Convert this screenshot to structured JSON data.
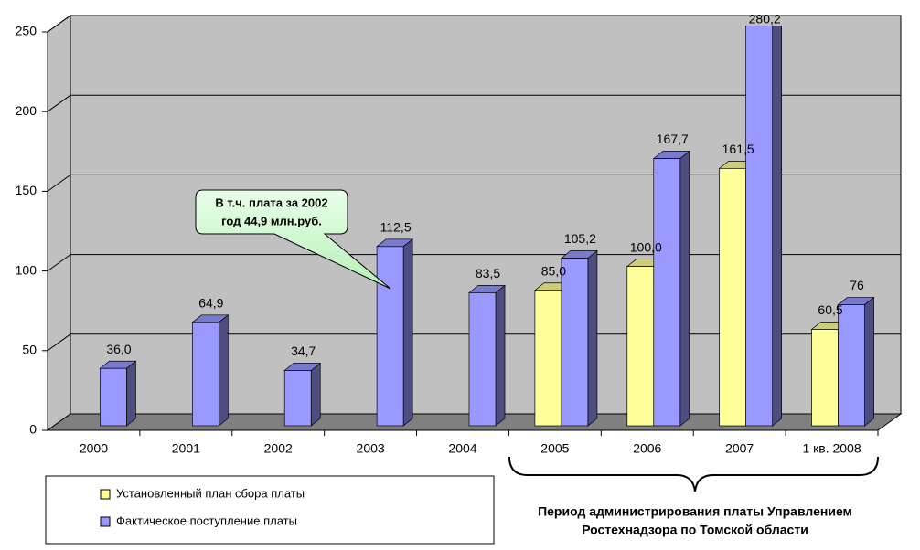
{
  "chart_data": {
    "type": "bar",
    "categories": [
      "2000",
      "2001",
      "2002",
      "2003",
      "2004",
      "2005",
      "2006",
      "2007",
      "1 кв. 2008"
    ],
    "series": [
      {
        "name": "Установленный план сбора платы",
        "color": "#ffff99",
        "values": [
          null,
          null,
          null,
          null,
          null,
          85.0,
          100.0,
          161.5,
          60.5
        ],
        "value_labels": [
          null,
          null,
          null,
          null,
          null,
          "85,0",
          "100,0",
          "161,5",
          "60,5"
        ]
      },
      {
        "name": "Фактическое поступление платы",
        "color": "#9999ff",
        "values": [
          36.0,
          64.9,
          34.7,
          112.5,
          83.5,
          105.2,
          167.7,
          280.2,
          76
        ],
        "value_labels": [
          "36,0",
          "64,9",
          "34,7",
          "112,5",
          "83,5",
          "105,2",
          "167,7",
          "280,2",
          "76"
        ]
      }
    ],
    "ylim": [
      0,
      250
    ],
    "yticks": [
      0,
      50,
      100,
      150,
      200,
      250
    ],
    "grid": true,
    "annotation": [
      "В т.ч. плата за 2002",
      "год 44,9 млн.руб."
    ],
    "period_note": [
      "Период администрирования платы Управлением",
      "Ростехнадзора по Томской области"
    ]
  }
}
